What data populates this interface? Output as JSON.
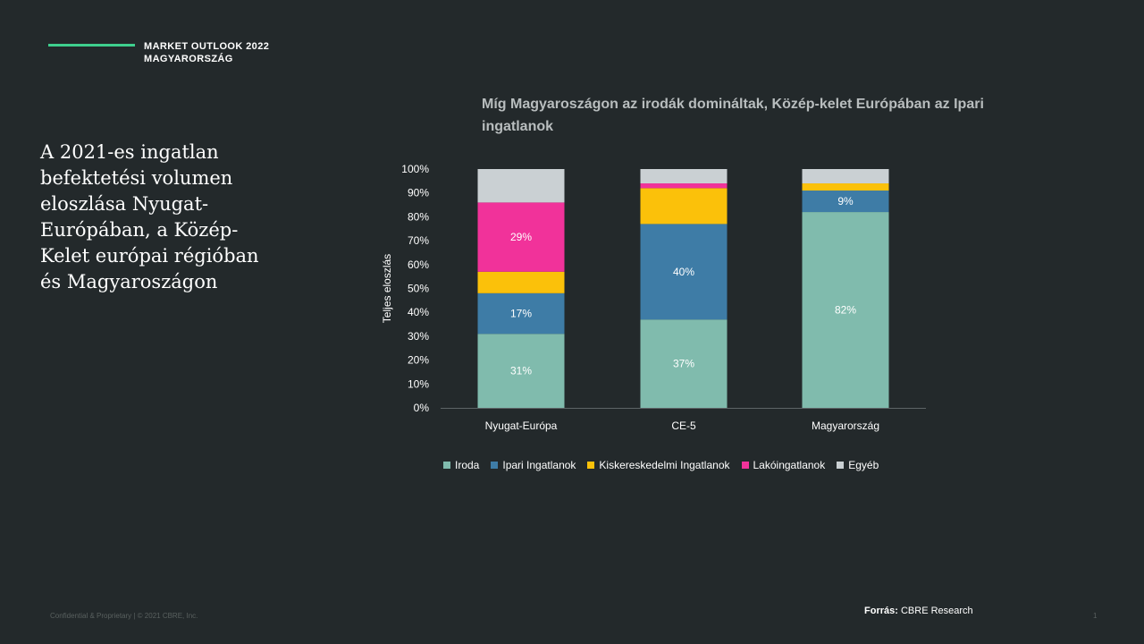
{
  "header": {
    "line1": "MARKET OUTLOOK 2022",
    "line2": "MAGYARORSZÁG",
    "accent_color": "#3ecf8e"
  },
  "page_title": "A 2021-es ingatlan befektetési volumen eloszlása Nyugat-Európában, a Közép-Kelet európai régióban és Magyaroszágon",
  "chart_title": "Míg Magyaroszágon az irodák domináltak, Közép-kelet Európában az Ipari ingatlanok",
  "chart_data": {
    "type": "bar",
    "stacked": true,
    "title": "Míg Magyaroszágon az irodák domináltak, Közép-kelet Európában az Ipari ingatlanok",
    "xlabel": "",
    "ylabel": "Teljes eloszlás",
    "ylim": [
      0,
      100
    ],
    "yticks": [
      "0%",
      "10%",
      "20%",
      "30%",
      "40%",
      "50%",
      "60%",
      "70%",
      "80%",
      "90%",
      "100%"
    ],
    "categories": [
      "Nyugat-Európa",
      "CE-5",
      "Magyarország"
    ],
    "series": [
      {
        "name": "Iroda",
        "color": "#80bbad",
        "values": [
          31,
          37,
          82
        ],
        "labels": [
          "31%",
          "37%",
          "82%"
        ]
      },
      {
        "name": "Ipari Ingatlanok",
        "color": "#3e7ca6",
        "values": [
          17,
          40,
          9
        ],
        "labels": [
          "17%",
          "40%",
          "9%"
        ]
      },
      {
        "name": "Kiskereskedelmi Ingatlanok",
        "color": "#fbc10a",
        "values": [
          9,
          15,
          3
        ],
        "labels": [
          "",
          "",
          ""
        ]
      },
      {
        "name": "Lakóingatlanok",
        "color": "#f1329a",
        "values": [
          29,
          2,
          0
        ],
        "labels": [
          "29%",
          "",
          ""
        ]
      },
      {
        "name": "Egyéb",
        "color": "#cad0d3",
        "values": [
          14,
          6,
          6
        ],
        "labels": [
          "",
          "",
          ""
        ]
      }
    ],
    "grid": false,
    "legend_position": "bottom"
  },
  "footer": {
    "confidential": "Confidential & Proprietary | © 2021 CBRE, Inc.",
    "source_label": "Forrás:",
    "source_value": "CBRE Research",
    "page_number": "1"
  }
}
